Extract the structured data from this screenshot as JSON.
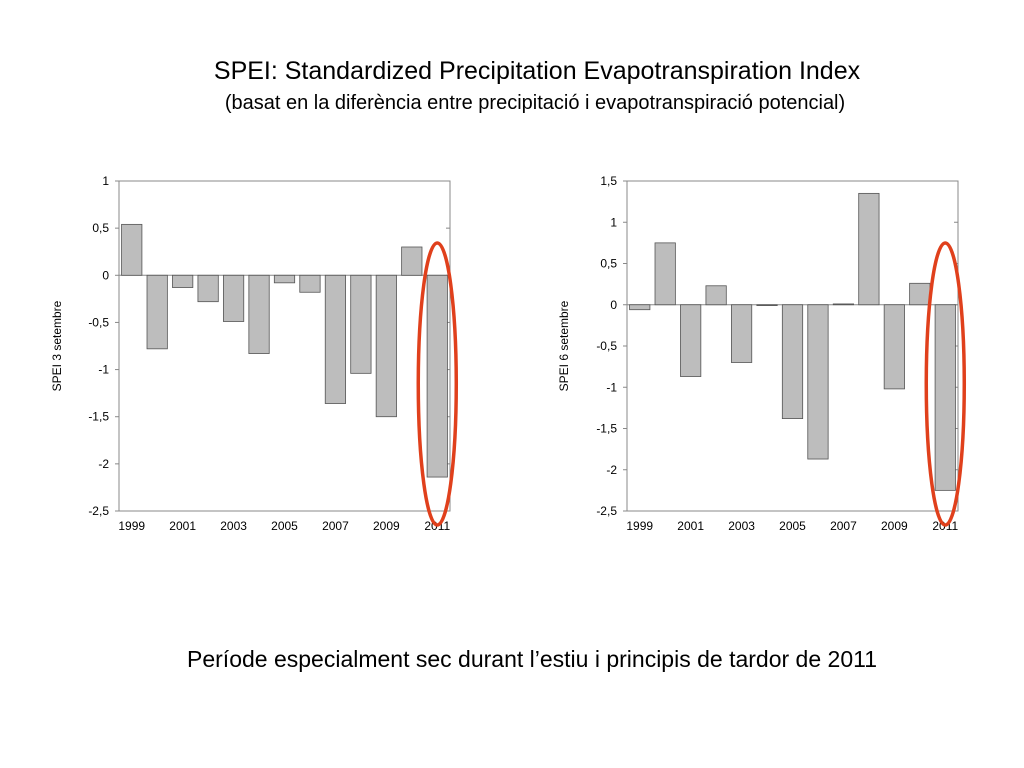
{
  "slide": {
    "title": "SPEI: Standardized Precipitation Evapotranspiration Index",
    "subtitle": "(basat en la diferència entre precipitació i evapotranspiració potencial)",
    "caption": "Període especialment sec durant l’estiu i principis de tardor de 2011"
  },
  "colors": {
    "bar_fill": "#bdbdbd",
    "bar_stroke": "#555555",
    "axis": "#888888",
    "highlight": "#e0401c"
  },
  "chart_data": [
    {
      "type": "bar",
      "ylabel": "SPEI 3 setembre",
      "x": [
        1999,
        2000,
        2001,
        2002,
        2003,
        2004,
        2005,
        2006,
        2007,
        2008,
        2009,
        2010,
        2011
      ],
      "values": [
        0.54,
        -0.78,
        -0.13,
        -0.28,
        -0.49,
        -0.83,
        -0.08,
        -0.18,
        -1.36,
        -1.04,
        -1.5,
        0.3,
        -2.14
      ],
      "xticks": [
        "1999",
        "2001",
        "2003",
        "2005",
        "2007",
        "2009",
        "2011"
      ],
      "yticks": [
        "1",
        "0,5",
        "0",
        "-0,5",
        "-1",
        "-1,5",
        "-2",
        "-2,5"
      ],
      "ytick_values": [
        1,
        0.5,
        0,
        -0.5,
        -1,
        -1.5,
        -2,
        -2.5
      ],
      "ylim": [
        -2.5,
        1
      ],
      "grid": false,
      "highlight": "2011"
    },
    {
      "type": "bar",
      "ylabel": "SPEI 6 setembre",
      "x": [
        1999,
        2000,
        2001,
        2002,
        2003,
        2004,
        2005,
        2006,
        2007,
        2008,
        2009,
        2010,
        2011
      ],
      "values": [
        -0.06,
        0.75,
        -0.87,
        0.23,
        -0.7,
        -0.01,
        -1.38,
        -1.87,
        0.01,
        1.35,
        -1.02,
        0.26,
        -2.25
      ],
      "xticks": [
        "1999",
        "2001",
        "2003",
        "2005",
        "2007",
        "2009",
        "2011"
      ],
      "yticks": [
        "1,5",
        "1",
        "0,5",
        "0",
        "-0,5",
        "-1",
        "-1,5",
        "-2",
        "-2,5"
      ],
      "ytick_values": [
        1.5,
        1,
        0.5,
        0,
        -0.5,
        -1,
        -1.5,
        -2,
        -2.5
      ],
      "ylim": [
        -2.5,
        1.5
      ],
      "grid": false,
      "highlight": "2011"
    }
  ]
}
